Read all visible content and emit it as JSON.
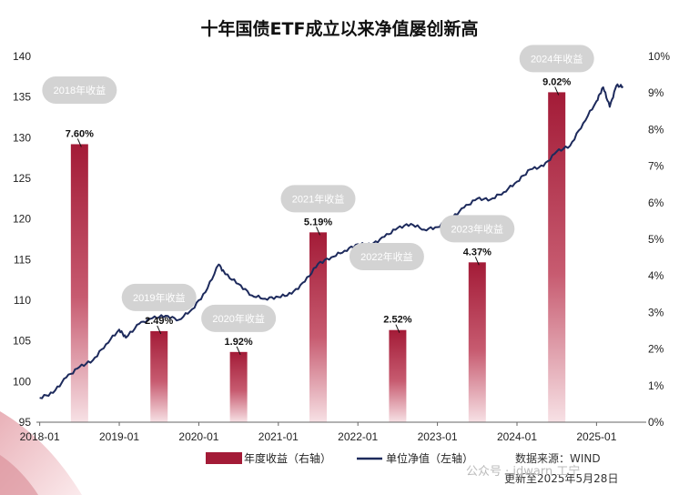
{
  "chart_data": {
    "type": "bar+line",
    "title": "十年国债ETF成立以来净值屡创新高",
    "x_range": [
      "2018-01",
      "2025-05"
    ],
    "x_ticks": [
      "2018-01",
      "2019-01",
      "2020-01",
      "2021-01",
      "2022-01",
      "2023-01",
      "2024-01",
      "2025-01"
    ],
    "left_axis": {
      "ylim": [
        95,
        140
      ],
      "ticks": [
        95,
        100,
        105,
        110,
        115,
        120,
        125,
        130,
        135,
        140
      ]
    },
    "right_axis": {
      "ylim": [
        0,
        10
      ],
      "ticks": [
        "0%",
        "1%",
        "2%",
        "3%",
        "4%",
        "5%",
        "6%",
        "7%",
        "8%",
        "9%",
        "10%"
      ]
    },
    "bars": {
      "name": "年度收益（右轴）",
      "axis": "right",
      "color": "#a31b37",
      "points": [
        {
          "year": "2018",
          "value": 7.6,
          "label": "7.60%",
          "tag": "2018年收益"
        },
        {
          "year": "2019",
          "value": 2.49,
          "label": "2.49%",
          "tag": "2019年收益"
        },
        {
          "year": "2020",
          "value": 1.92,
          "label": "1.92%",
          "tag": "2020年收益"
        },
        {
          "year": "2021",
          "value": 5.19,
          "label": "5.19%",
          "tag": "2021年收益"
        },
        {
          "year": "2022",
          "value": 2.52,
          "label": "2.52%",
          "tag": "2022年收益"
        },
        {
          "year": "2023",
          "value": 4.37,
          "label": "4.37%",
          "tag": "2023年收益"
        },
        {
          "year": "2024",
          "value": 9.02,
          "label": "9.02%",
          "tag": "2024年收益"
        }
      ]
    },
    "line": {
      "name": "单位净值（左轴）",
      "axis": "left",
      "color": "#1d2a5c",
      "points": [
        [
          "2018-01",
          98.0
        ],
        [
          "2018-03",
          98.6
        ],
        [
          "2018-05",
          100.5
        ],
        [
          "2018-07",
          101.8
        ],
        [
          "2018-09",
          102.6
        ],
        [
          "2018-11",
          104.6
        ],
        [
          "2019-01",
          106.4
        ],
        [
          "2019-02",
          105.4
        ],
        [
          "2019-04",
          107.1
        ],
        [
          "2019-06",
          107.8
        ],
        [
          "2019-08",
          108.1
        ],
        [
          "2019-10",
          107.6
        ],
        [
          "2019-12",
          108.9
        ],
        [
          "2020-02",
          111.0
        ],
        [
          "2020-04",
          114.4
        ],
        [
          "2020-05",
          113.2
        ],
        [
          "2020-07",
          112.0
        ],
        [
          "2020-09",
          110.6
        ],
        [
          "2020-11",
          110.2
        ],
        [
          "2021-01",
          110.4
        ],
        [
          "2021-03",
          110.8
        ],
        [
          "2021-05",
          112.3
        ],
        [
          "2021-07",
          114.5
        ],
        [
          "2021-09",
          115.3
        ],
        [
          "2021-11",
          116.1
        ],
        [
          "2022-01",
          116.9
        ],
        [
          "2022-03",
          116.8
        ],
        [
          "2022-05",
          117.8
        ],
        [
          "2022-07",
          118.9
        ],
        [
          "2022-09",
          119.4
        ],
        [
          "2022-11",
          118.7
        ],
        [
          "2023-01",
          119.0
        ],
        [
          "2023-03",
          120.0
        ],
        [
          "2023-05",
          121.4
        ],
        [
          "2023-07",
          122.5
        ],
        [
          "2023-09",
          122.4
        ],
        [
          "2023-11",
          123.3
        ],
        [
          "2024-01",
          124.6
        ],
        [
          "2024-03",
          126.1
        ],
        [
          "2024-05",
          126.5
        ],
        [
          "2024-07",
          128.3
        ],
        [
          "2024-09",
          129.0
        ],
        [
          "2024-11",
          131.8
        ],
        [
          "2025-01",
          134.5
        ],
        [
          "2025-02",
          136.2
        ],
        [
          "2025-03",
          133.8
        ],
        [
          "2025-04",
          136.4
        ],
        [
          "2025-05",
          136.3
        ]
      ]
    },
    "legend": {
      "placement": "bottom",
      "items": [
        "年度收益（右轴）",
        "单位净值（左轴）"
      ]
    }
  },
  "source": {
    "line1": "数据来源：WIND",
    "line2": "更新至2025年5月28日"
  },
  "watermark": "公众号 · idwarn 工宁",
  "colors": {
    "bar": "#a31b37",
    "line": "#1d2a5c",
    "pill": "#d3d3d3"
  }
}
